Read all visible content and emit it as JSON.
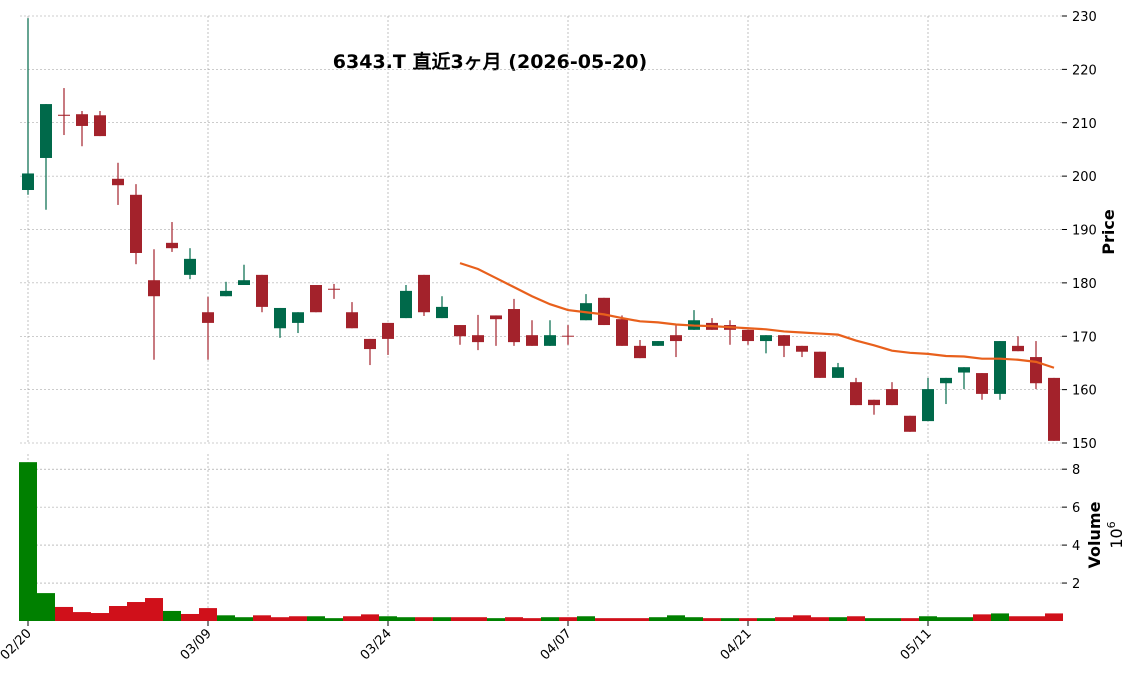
{
  "chart_data": [
    {
      "type": "candlestick",
      "title": "6343.T  直近3ヶ月  (2026-05-20)",
      "ylabel": "Price",
      "categories": [
        "02/20",
        null,
        null,
        null,
        null,
        null,
        null,
        null,
        null,
        null,
        "03/09",
        null,
        null,
        null,
        null,
        null,
        null,
        null,
        null,
        null,
        "03/24",
        null,
        null,
        null,
        null,
        null,
        null,
        null,
        null,
        null,
        "04/07",
        null,
        null,
        null,
        null,
        null,
        null,
        null,
        null,
        null,
        "04/21",
        null,
        null,
        null,
        null,
        null,
        null,
        null,
        null,
        null,
        "05/11",
        null,
        null,
        null,
        null,
        null,
        null,
        null
      ],
      "open": [
        197.4,
        203.4,
        211.5,
        211.6,
        211.4,
        199.5,
        196.5,
        180.5,
        187.5,
        181.5,
        174.5,
        177.5,
        179.6,
        181.5,
        171.5,
        172.5,
        179.6,
        178.9,
        174.5,
        169.5,
        172.5,
        173.4,
        181.5,
        173.4,
        172.1,
        170.2,
        173.9,
        175.1,
        170.2,
        168.2,
        170.1,
        173.0,
        177.2,
        173.2,
        168.2,
        168.2,
        170.2,
        171.2,
        172.5,
        172.1,
        171.2,
        169.1,
        170.2,
        168.2,
        167.1,
        162.2,
        161.4,
        158.1,
        160.1,
        155.1,
        154.1,
        161.2,
        163.2,
        163.1,
        159.2,
        168.2,
        166.1,
        162.2
      ],
      "high": [
        229.6,
        213.5,
        216.5,
        212.2,
        212.2,
        202.5,
        198.5,
        186.3,
        191.4,
        186.5,
        177.4,
        180.2,
        183.4,
        181.5,
        175.3,
        174.5,
        179.6,
        179.8,
        176.4,
        169.5,
        172.5,
        179.6,
        181.5,
        177.5,
        172.1,
        174.0,
        173.9,
        177.0,
        173.0,
        173.0,
        172.1,
        177.9,
        177.2,
        173.9,
        169.3,
        169.1,
        172.1,
        174.9,
        173.4,
        173.0,
        171.2,
        170.2,
        170.2,
        168.2,
        167.1,
        165.0,
        162.2,
        158.1,
        161.4,
        155.1,
        162.2,
        162.2,
        164.2,
        163.1,
        169.1,
        170.0,
        169.1,
        162.2
      ],
      "low": [
        196.5,
        193.7,
        207.7,
        205.6,
        207.5,
        194.6,
        183.5,
        165.6,
        185.8,
        180.7,
        165.6,
        177.5,
        179.6,
        174.5,
        169.7,
        170.6,
        174.5,
        177.0,
        171.5,
        164.6,
        166.5,
        173.4,
        173.8,
        173.4,
        168.4,
        167.4,
        168.2,
        168.2,
        168.2,
        168.2,
        168.4,
        173.0,
        172.1,
        168.2,
        165.9,
        168.2,
        166.1,
        171.2,
        171.2,
        168.4,
        168.4,
        166.8,
        166.1,
        166.1,
        162.2,
        162.2,
        157.1,
        155.3,
        157.1,
        152.1,
        154.1,
        157.3,
        160.1,
        158.1,
        158.1,
        167.2,
        160.1,
        150.4
      ],
      "close": [
        200.5,
        213.5,
        211.3,
        209.4,
        207.5,
        198.3,
        185.6,
        177.5,
        186.5,
        184.5,
        172.5,
        178.5,
        180.5,
        175.5,
        175.3,
        174.5,
        174.5,
        178.8,
        171.5,
        167.6,
        169.5,
        178.5,
        174.5,
        175.5,
        170.0,
        168.9,
        173.2,
        168.9,
        168.2,
        170.2,
        170.0,
        176.2,
        172.1,
        168.2,
        165.9,
        169.1,
        169.1,
        173.0,
        171.2,
        171.2,
        169.1,
        170.2,
        168.2,
        167.1,
        162.2,
        164.2,
        157.1,
        157.1,
        157.1,
        152.1,
        160.1,
        162.2,
        164.2,
        159.2,
        169.1,
        167.2,
        161.2,
        150.4
      ],
      "up_color": "#00694a",
      "down_color": "#a3222b",
      "series": [
        {
          "color": "#e8601c",
          "values": [
            null,
            null,
            null,
            null,
            null,
            null,
            null,
            null,
            null,
            null,
            null,
            null,
            null,
            null,
            null,
            null,
            null,
            null,
            null,
            null,
            null,
            null,
            null,
            null,
            183.7,
            182.6,
            180.9,
            179.2,
            177.5,
            176.0,
            174.9,
            174.5,
            174.1,
            173.4,
            172.8,
            172.6,
            172.2,
            172.0,
            171.9,
            171.7,
            171.5,
            171.3,
            170.9,
            170.7,
            170.5,
            170.3,
            169.2,
            168.3,
            167.3,
            166.9,
            166.7,
            166.3,
            166.2,
            165.8,
            165.8,
            165.6,
            165.2,
            164.1
          ]
        }
      ],
      "ylim": [
        150,
        230
      ],
      "yticks": [
        150,
        160,
        170,
        180,
        190,
        200,
        210,
        220,
        230
      ],
      "grid": true
    },
    {
      "type": "bar",
      "ylabel": "Volume",
      "ylabel_multiplier": {
        "base": "10",
        "exponent": "6"
      },
      "values": [
        8.37,
        1.47,
        0.74,
        0.47,
        0.42,
        0.79,
        1.0,
        1.21,
        0.53,
        0.37,
        0.68,
        0.3,
        0.2,
        0.3,
        0.2,
        0.25,
        0.25,
        0.15,
        0.25,
        0.35,
        0.25,
        0.2,
        0.2,
        0.2,
        0.2,
        0.2,
        0.15,
        0.2,
        0.15,
        0.2,
        0.2,
        0.25,
        0.15,
        0.15,
        0.15,
        0.2,
        0.3,
        0.2,
        0.15,
        0.15,
        0.15,
        0.15,
        0.2,
        0.3,
        0.2,
        0.2,
        0.25,
        0.15,
        0.15,
        0.15,
        0.25,
        0.2,
        0.2,
        0.35,
        0.4,
        0.25,
        0.25,
        0.4
      ],
      "up_color": "#008000",
      "down_color": "#d0101a",
      "ylim": [
        0,
        8.8
      ],
      "yticks": [
        2,
        4,
        6,
        8
      ],
      "grid": true
    }
  ]
}
